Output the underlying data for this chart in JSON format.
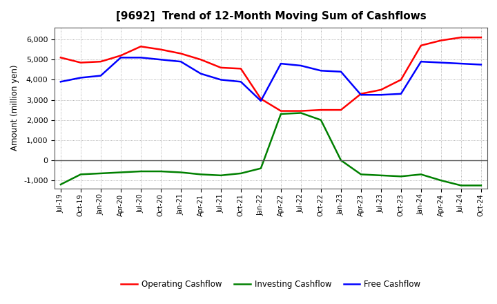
{
  "title": "[9692]  Trend of 12-Month Moving Sum of Cashflows",
  "ylabel": "Amount (million yen)",
  "x_labels": [
    "Jul-19",
    "Oct-19",
    "Jan-20",
    "Apr-20",
    "Jul-20",
    "Oct-20",
    "Jan-21",
    "Apr-21",
    "Jul-21",
    "Oct-21",
    "Jan-22",
    "Apr-22",
    "Jul-22",
    "Oct-22",
    "Jan-23",
    "Apr-23",
    "Jul-23",
    "Oct-23",
    "Jan-24",
    "Apr-24",
    "Jul-24",
    "Oct-24"
  ],
  "operating": [
    5100,
    4850,
    4900,
    5200,
    5650,
    5500,
    5300,
    5000,
    4600,
    4550,
    3050,
    2450,
    2450,
    2500,
    2500,
    3300,
    3500,
    4000,
    5700,
    5950,
    6100,
    6100
  ],
  "investing": [
    -1200,
    -700,
    -650,
    -600,
    -550,
    -550,
    -600,
    -700,
    -750,
    -650,
    -400,
    2300,
    2350,
    2000,
    0,
    -700,
    -750,
    -800,
    -700,
    -1000,
    -1250,
    -1250
  ],
  "free": [
    3900,
    4100,
    4200,
    5100,
    5100,
    5000,
    4900,
    4300,
    4000,
    3900,
    2950,
    4800,
    4700,
    4450,
    4400,
    3250,
    3250,
    3300,
    4900,
    4850,
    4800,
    4750
  ],
  "ylim": [
    -1400,
    6600
  ],
  "yticks": [
    -1000,
    0,
    1000,
    2000,
    3000,
    4000,
    5000,
    6000
  ],
  "operating_color": "#ff0000",
  "investing_color": "#008000",
  "free_color": "#0000ff",
  "bg_color": "#ffffff",
  "plot_bg_color": "#ffffff",
  "grid_color": "#999999",
  "zero_line_color": "#555555",
  "legend_labels": [
    "Operating Cashflow",
    "Investing Cashflow",
    "Free Cashflow"
  ]
}
